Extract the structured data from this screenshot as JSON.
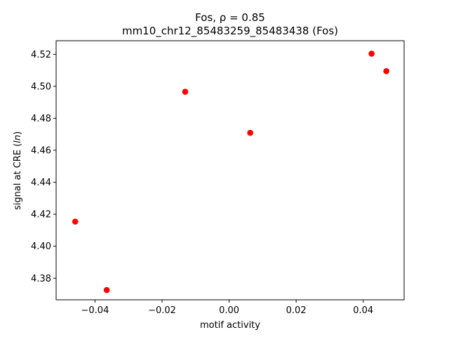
{
  "chart_data": {
    "type": "scatter",
    "title_line1": "Fos, ρ = 0.85",
    "title_line2": "mm10_chr12_85483259_85483438 (Fos)",
    "xlabel": "motif activity",
    "ylabel_prefix": "signal at CRE (",
    "ylabel_italic": "ln",
    "ylabel_suffix": ")",
    "xlim": [
      -0.0516,
      0.0522
    ],
    "ylim": [
      4.3665,
      4.5285
    ],
    "xticks": [
      -0.04,
      -0.02,
      0.0,
      0.02,
      0.04
    ],
    "xtick_labels": [
      "−0.04",
      "−0.02",
      "0.00",
      "0.02",
      "0.04"
    ],
    "yticks": [
      4.38,
      4.4,
      4.42,
      4.44,
      4.46,
      4.48,
      4.5,
      4.52
    ],
    "ytick_labels": [
      "4.38",
      "4.40",
      "4.42",
      "4.44",
      "4.46",
      "4.48",
      "4.50",
      "4.52"
    ],
    "grid": false,
    "marker_color": "#ff0000",
    "points": [
      {
        "x": -0.0459,
        "y": 4.4154
      },
      {
        "x": -0.0365,
        "y": 4.3726
      },
      {
        "x": -0.0131,
        "y": 4.4966
      },
      {
        "x": 0.0063,
        "y": 4.4709
      },
      {
        "x": 0.0425,
        "y": 4.5204
      },
      {
        "x": 0.0469,
        "y": 4.5095
      }
    ]
  }
}
